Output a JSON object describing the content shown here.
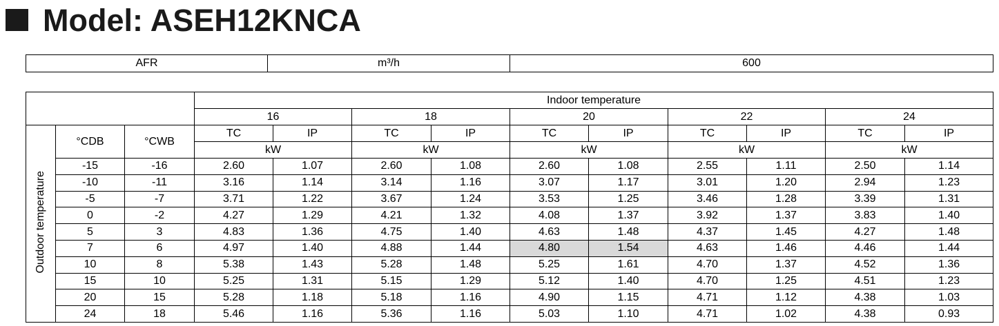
{
  "title": "Model: ASEH12KNCA",
  "summary": {
    "label": "AFR",
    "unit": "m³/h",
    "value": "600"
  },
  "table": {
    "group_header": "Indoor temperature",
    "side_header": "Outdoor temperature",
    "col_headers": [
      "°CDB",
      "°CWB"
    ],
    "indoor_temps": [
      "16",
      "18",
      "20",
      "22",
      "24"
    ],
    "sub_headers": [
      "TC",
      "IP"
    ],
    "unit": "kW",
    "rows": [
      [
        "-15",
        "-16",
        "2.60",
        "1.07",
        "2.60",
        "1.08",
        "2.60",
        "1.08",
        "2.55",
        "1.11",
        "2.50",
        "1.14"
      ],
      [
        "-10",
        "-11",
        "3.16",
        "1.14",
        "3.14",
        "1.16",
        "3.07",
        "1.17",
        "3.01",
        "1.20",
        "2.94",
        "1.23"
      ],
      [
        "-5",
        "-7",
        "3.71",
        "1.22",
        "3.67",
        "1.24",
        "3.53",
        "1.25",
        "3.46",
        "1.28",
        "3.39",
        "1.31"
      ],
      [
        "0",
        "-2",
        "4.27",
        "1.29",
        "4.21",
        "1.32",
        "4.08",
        "1.37",
        "3.92",
        "1.37",
        "3.83",
        "1.40"
      ],
      [
        "5",
        "3",
        "4.83",
        "1.36",
        "4.75",
        "1.40",
        "4.63",
        "1.48",
        "4.37",
        "1.45",
        "4.27",
        "1.48"
      ],
      [
        "7",
        "6",
        "4.97",
        "1.40",
        "4.88",
        "1.44",
        "4.80",
        "1.54",
        "4.63",
        "1.46",
        "4.46",
        "1.44"
      ],
      [
        "10",
        "8",
        "5.38",
        "1.43",
        "5.28",
        "1.48",
        "5.25",
        "1.61",
        "4.70",
        "1.37",
        "4.52",
        "1.36"
      ],
      [
        "15",
        "10",
        "5.25",
        "1.31",
        "5.15",
        "1.29",
        "5.12",
        "1.40",
        "4.70",
        "1.25",
        "4.51",
        "1.23"
      ],
      [
        "20",
        "15",
        "5.28",
        "1.18",
        "5.18",
        "1.16",
        "4.90",
        "1.15",
        "4.71",
        "1.12",
        "4.38",
        "1.03"
      ],
      [
        "24",
        "18",
        "5.46",
        "1.16",
        "5.36",
        "1.16",
        "5.03",
        "1.10",
        "4.71",
        "1.02",
        "4.38",
        "0.93"
      ]
    ]
  }
}
